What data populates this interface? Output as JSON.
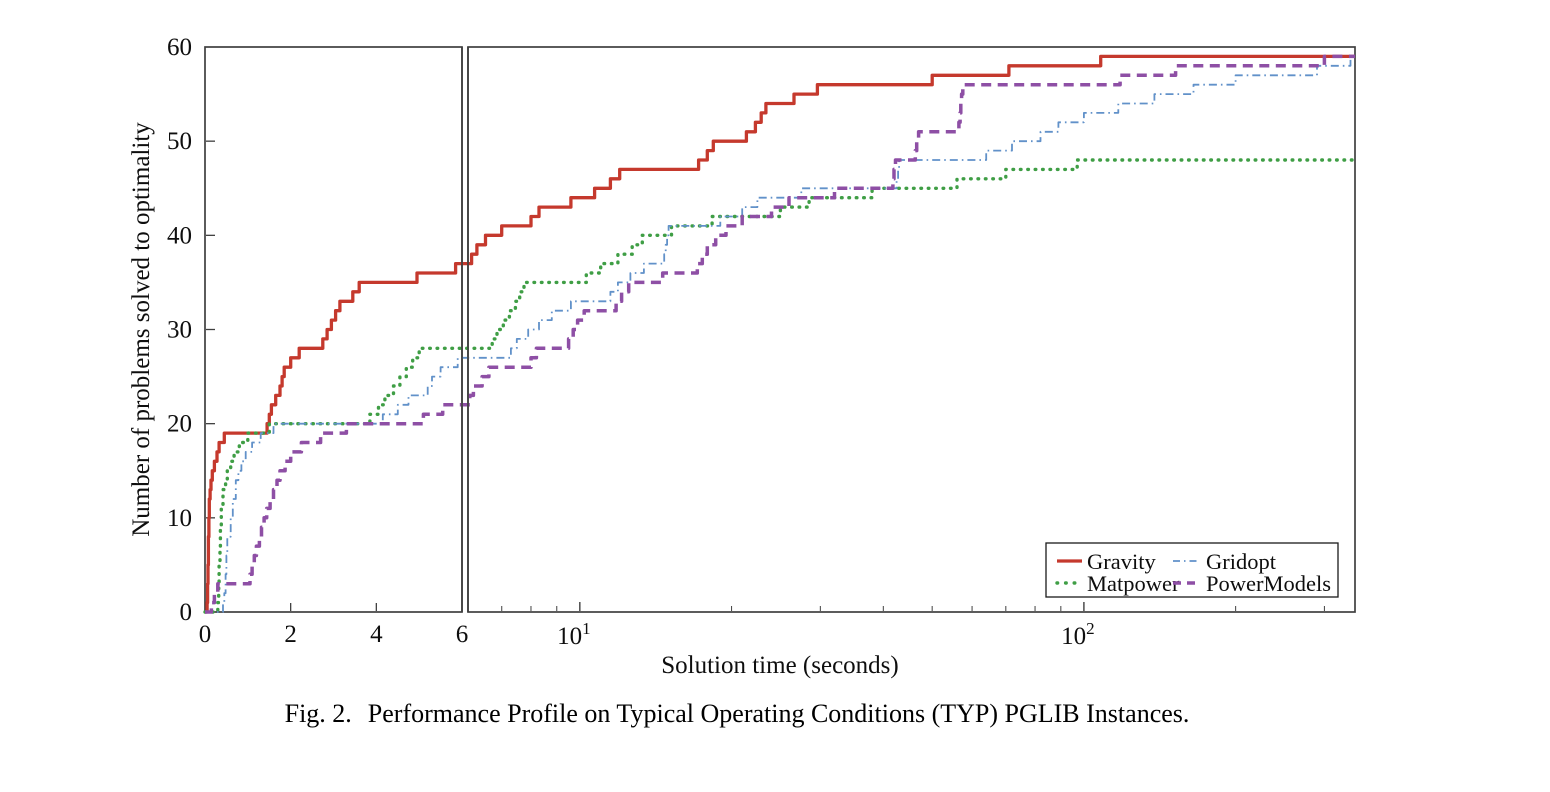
{
  "figure": {
    "caption_tag": "Fig. 2.",
    "caption_text": "Performance Profile on Typical Operating Conditions (TYP) PGLIB Instances."
  },
  "chart_data": {
    "type": "line",
    "subtype": "step-performance-profile",
    "title": "",
    "xlabel": "Solution time (seconds)",
    "ylabel": "Number of problems solved to optimality",
    "ylim": [
      0,
      60
    ],
    "yticks": [
      0,
      10,
      20,
      30,
      40,
      50,
      60
    ],
    "grid": false,
    "x_axis": {
      "scale": "split-linear-log",
      "break_value": 6,
      "left_segment": {
        "scale": "linear",
        "range": [
          0,
          6
        ],
        "tick_labels": [
          "0",
          "2",
          "4",
          "6"
        ],
        "tick_values": [
          0,
          2,
          4,
          6
        ]
      },
      "right_segment": {
        "scale": "log",
        "range": [
          6,
          345
        ],
        "major_tick_values": [
          10,
          100
        ],
        "major_tick_labels": [
          {
            "base": "10",
            "exp": "1"
          },
          {
            "base": "10",
            "exp": "2"
          }
        ],
        "minor_tick_values": [
          7,
          8,
          9,
          20,
          30,
          40,
          50,
          60,
          70,
          80,
          90,
          200,
          300
        ]
      }
    },
    "legend": {
      "position": "lower right",
      "columns": [
        [
          "Gravity",
          "Matpower"
        ],
        [
          "Gridopt",
          "PowerModels"
        ]
      ]
    },
    "series": [
      {
        "name": "Gravity",
        "color": "#c5392d",
        "style": "solid",
        "width": 3.3,
        "points": [
          [
            0.05,
            1
          ],
          [
            0.06,
            3
          ],
          [
            0.07,
            5
          ],
          [
            0.08,
            8
          ],
          [
            0.09,
            10
          ],
          [
            0.1,
            12
          ],
          [
            0.12,
            13
          ],
          [
            0.14,
            14
          ],
          [
            0.17,
            15
          ],
          [
            0.22,
            16
          ],
          [
            0.28,
            17
          ],
          [
            0.33,
            18
          ],
          [
            0.45,
            19
          ],
          [
            1.45,
            20
          ],
          [
            1.5,
            21
          ],
          [
            1.55,
            22
          ],
          [
            1.65,
            23
          ],
          [
            1.75,
            24
          ],
          [
            1.8,
            25
          ],
          [
            1.85,
            26
          ],
          [
            2.0,
            27
          ],
          [
            2.2,
            28
          ],
          [
            2.75,
            29
          ],
          [
            2.85,
            30
          ],
          [
            2.95,
            31
          ],
          [
            3.05,
            32
          ],
          [
            3.15,
            33
          ],
          [
            3.45,
            34
          ],
          [
            3.6,
            35
          ],
          [
            4.95,
            36
          ],
          [
            5.85,
            37
          ],
          [
            6.1,
            38
          ],
          [
            6.25,
            39
          ],
          [
            6.5,
            40
          ],
          [
            7.0,
            41
          ],
          [
            8.0,
            42
          ],
          [
            8.3,
            43
          ],
          [
            9.6,
            44
          ],
          [
            10.7,
            45
          ],
          [
            11.5,
            46
          ],
          [
            12.0,
            47
          ],
          [
            17.2,
            48
          ],
          [
            17.9,
            49
          ],
          [
            18.4,
            50
          ],
          [
            21.4,
            51
          ],
          [
            22.3,
            52
          ],
          [
            22.9,
            53
          ],
          [
            23.4,
            54
          ],
          [
            26.6,
            55
          ],
          [
            29.6,
            56
          ],
          [
            50,
            57
          ],
          [
            71,
            58
          ],
          [
            108,
            59
          ]
        ]
      },
      {
        "name": "Matpower",
        "color": "#3f9e45",
        "style": "dotted",
        "width": 3.4,
        "points": [
          [
            0.3,
            1
          ],
          [
            0.32,
            3
          ],
          [
            0.33,
            5
          ],
          [
            0.35,
            7
          ],
          [
            0.36,
            9
          ],
          [
            0.38,
            11
          ],
          [
            0.42,
            13
          ],
          [
            0.48,
            14
          ],
          [
            0.52,
            15
          ],
          [
            0.6,
            16
          ],
          [
            0.68,
            17
          ],
          [
            0.8,
            18
          ],
          [
            1.0,
            19
          ],
          [
            1.5,
            20
          ],
          [
            3.85,
            21
          ],
          [
            4.05,
            22
          ],
          [
            4.2,
            23
          ],
          [
            4.4,
            24
          ],
          [
            4.55,
            25
          ],
          [
            4.7,
            26
          ],
          [
            4.85,
            27
          ],
          [
            5.0,
            28
          ],
          [
            6.7,
            29
          ],
          [
            6.85,
            30
          ],
          [
            7.05,
            31
          ],
          [
            7.25,
            32
          ],
          [
            7.45,
            33
          ],
          [
            7.6,
            34
          ],
          [
            7.75,
            35
          ],
          [
            10.3,
            36
          ],
          [
            11.0,
            37
          ],
          [
            11.9,
            38
          ],
          [
            12.7,
            39
          ],
          [
            13.3,
            40
          ],
          [
            15.2,
            41
          ],
          [
            18.3,
            42
          ],
          [
            25,
            43
          ],
          [
            28.5,
            44
          ],
          [
            38,
            45
          ],
          [
            56,
            46
          ],
          [
            70,
            47
          ],
          [
            97,
            48
          ]
        ]
      },
      {
        "name": "Gridopt",
        "color": "#6191c9",
        "style": "dashdot",
        "width": 1.8,
        "points": [
          [
            0.42,
            1
          ],
          [
            0.45,
            2
          ],
          [
            0.48,
            4
          ],
          [
            0.5,
            6
          ],
          [
            0.52,
            8
          ],
          [
            0.6,
            10
          ],
          [
            0.65,
            12
          ],
          [
            0.72,
            14
          ],
          [
            0.78,
            15
          ],
          [
            0.85,
            16
          ],
          [
            0.95,
            17
          ],
          [
            1.1,
            18
          ],
          [
            1.3,
            19
          ],
          [
            1.6,
            20
          ],
          [
            4.15,
            21
          ],
          [
            4.5,
            22
          ],
          [
            4.75,
            23
          ],
          [
            5.2,
            24
          ],
          [
            5.3,
            25
          ],
          [
            5.5,
            26
          ],
          [
            5.9,
            27
          ],
          [
            7.3,
            28
          ],
          [
            7.5,
            29
          ],
          [
            7.9,
            30
          ],
          [
            8.3,
            31
          ],
          [
            8.8,
            32
          ],
          [
            9.6,
            33
          ],
          [
            11.5,
            34
          ],
          [
            11.9,
            35
          ],
          [
            12.6,
            36
          ],
          [
            13.4,
            37
          ],
          [
            14.7,
            38
          ],
          [
            14.8,
            39
          ],
          [
            14.9,
            40
          ],
          [
            15.0,
            41
          ],
          [
            19.0,
            42
          ],
          [
            21.0,
            43
          ],
          [
            22.5,
            44
          ],
          [
            27.5,
            45
          ],
          [
            42.5,
            46
          ],
          [
            42.8,
            47
          ],
          [
            43.0,
            48
          ],
          [
            64,
            49
          ],
          [
            72,
            50
          ],
          [
            82,
            51
          ],
          [
            89,
            52
          ],
          [
            100,
            53
          ],
          [
            117,
            54
          ],
          [
            138,
            55
          ],
          [
            165,
            56
          ],
          [
            200,
            57
          ],
          [
            290,
            58
          ],
          [
            338,
            59
          ]
        ]
      },
      {
        "name": "PowerModels",
        "color": "#8e4fa5",
        "style": "dashed",
        "width": 3.5,
        "points": [
          [
            0.15,
            1
          ],
          [
            0.22,
            2
          ],
          [
            0.3,
            3
          ],
          [
            1.05,
            4
          ],
          [
            1.1,
            5
          ],
          [
            1.15,
            6
          ],
          [
            1.2,
            7
          ],
          [
            1.27,
            8
          ],
          [
            1.32,
            9
          ],
          [
            1.38,
            10
          ],
          [
            1.44,
            11
          ],
          [
            1.52,
            12
          ],
          [
            1.6,
            13
          ],
          [
            1.68,
            14
          ],
          [
            1.75,
            15
          ],
          [
            1.87,
            16
          ],
          [
            2.0,
            17
          ],
          [
            2.25,
            18
          ],
          [
            2.7,
            19
          ],
          [
            3.3,
            20
          ],
          [
            5.1,
            21
          ],
          [
            5.55,
            22
          ],
          [
            6.05,
            23
          ],
          [
            6.15,
            24
          ],
          [
            6.4,
            25
          ],
          [
            6.6,
            26
          ],
          [
            8.0,
            27
          ],
          [
            8.2,
            28
          ],
          [
            9.5,
            29
          ],
          [
            9.7,
            30
          ],
          [
            9.9,
            31
          ],
          [
            10.2,
            32
          ],
          [
            11.8,
            33
          ],
          [
            12.1,
            34
          ],
          [
            12.5,
            35
          ],
          [
            14.6,
            36
          ],
          [
            17.1,
            37
          ],
          [
            17.5,
            38
          ],
          [
            17.9,
            39
          ],
          [
            18.6,
            40
          ],
          [
            19.5,
            41
          ],
          [
            21.0,
            42
          ],
          [
            24.0,
            43
          ],
          [
            26.0,
            44
          ],
          [
            32.0,
            45
          ],
          [
            41.8,
            46
          ],
          [
            42.0,
            47
          ],
          [
            42.3,
            48
          ],
          [
            46.3,
            49
          ],
          [
            46.6,
            50
          ],
          [
            47.0,
            51
          ],
          [
            56.5,
            52
          ],
          [
            56.8,
            53
          ],
          [
            57.0,
            54
          ],
          [
            57.2,
            55
          ],
          [
            57.5,
            56
          ],
          [
            118,
            57
          ],
          [
            152,
            58
          ],
          [
            300,
            59
          ]
        ]
      }
    ]
  }
}
